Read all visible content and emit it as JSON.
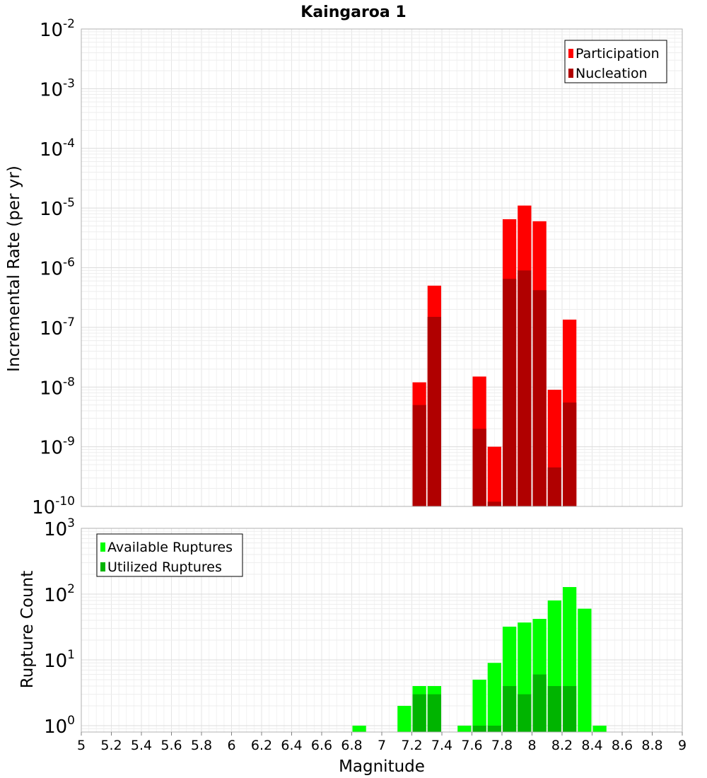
{
  "chart_data": [
    {
      "type": "bar",
      "title": "Kaingaroa 1",
      "xlabel": "",
      "ylabel": "Incremental Rate (per yr)",
      "y_scale": "log",
      "ylim": [
        1e-10,
        0.01
      ],
      "xlim": [
        5,
        9
      ],
      "bar_width": 0.1,
      "grid": true,
      "legend_position": "top-right",
      "series": [
        {
          "name": "Participation",
          "color": "#ff0000",
          "x": [
            7.25,
            7.35,
            7.65,
            7.75,
            7.85,
            7.95,
            8.05,
            8.15,
            8.25
          ],
          "values": [
            1.2e-08,
            5e-07,
            1.5e-08,
            1e-09,
            6.5e-06,
            1.1e-05,
            6e-06,
            9e-09,
            1.35e-07
          ]
        },
        {
          "name": "Nucleation",
          "color": "#b00000",
          "x": [
            7.25,
            7.35,
            7.65,
            7.75,
            7.85,
            7.95,
            8.05,
            8.15,
            8.25
          ],
          "values": [
            5e-09,
            1.5e-07,
            2e-09,
            1.2e-10,
            6.5e-07,
            9e-07,
            4.2e-07,
            4.5e-10,
            5.5e-09
          ]
        }
      ],
      "y_ticks": [
        "10^-10",
        "10^-9",
        "10^-8",
        "10^-7",
        "10^-6",
        "10^-5",
        "10^-4",
        "10^-3",
        "10^-2"
      ]
    },
    {
      "type": "bar",
      "title": "",
      "xlabel": "Magnitude",
      "ylabel": "Rupture Count",
      "y_scale": "log",
      "ylim": [
        0.8,
        1000
      ],
      "xlim": [
        5,
        9
      ],
      "bar_width": 0.1,
      "grid": true,
      "legend_position": "top-left",
      "series": [
        {
          "name": "Available Ruptures",
          "color": "#00ff00",
          "x": [
            6.85,
            7.15,
            7.25,
            7.35,
            7.55,
            7.65,
            7.75,
            7.85,
            7.95,
            8.05,
            8.15,
            8.25,
            8.35,
            8.45
          ],
          "values": [
            1,
            2,
            4,
            4,
            1,
            5,
            9,
            32,
            37,
            42,
            80,
            128,
            60,
            1
          ]
        },
        {
          "name": "Utilized Ruptures",
          "color": "#00b400",
          "x": [
            7.25,
            7.35,
            7.65,
            7.75,
            7.85,
            7.95,
            8.05,
            8.15,
            8.25
          ],
          "values": [
            3,
            3,
            1,
            1,
            4,
            3,
            6,
            4,
            4
          ]
        }
      ],
      "y_ticks": [
        "10^0",
        "10^1",
        "10^2",
        "10^3"
      ],
      "x_ticks": [
        "5",
        "5.2",
        "5.4",
        "5.6",
        "5.8",
        "6",
        "6.2",
        "6.4",
        "6.6",
        "6.8",
        "7",
        "7.2",
        "7.4",
        "7.6",
        "7.8",
        "8",
        "8.2",
        "8.4",
        "8.6",
        "8.8",
        "9"
      ]
    }
  ]
}
